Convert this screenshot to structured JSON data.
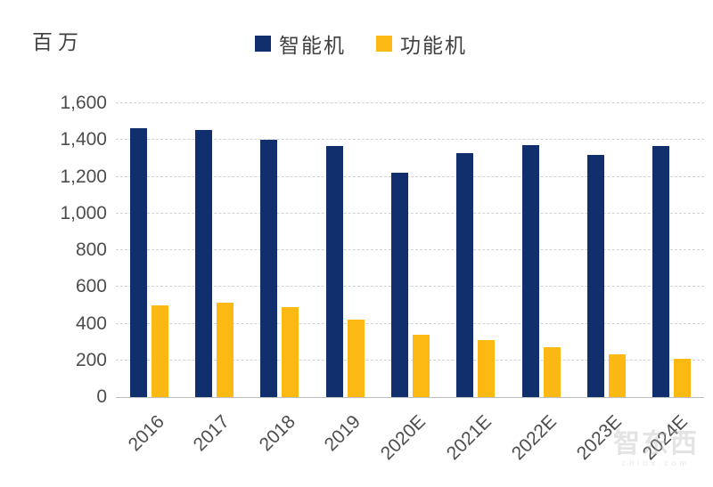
{
  "unit_label": "百万",
  "watermark": {
    "logo_text": "智东西",
    "subtext": "zhidx.com"
  },
  "colors": {
    "smartphone_blue": "#112F6D",
    "featurephone_yellow": "#FDB913",
    "gridline_gray": "#D2D2D2",
    "axis_text_gray": "#4D4D4D"
  },
  "chart_data": {
    "type": "bar",
    "title": "",
    "xlabel": "",
    "ylabel": "百万",
    "categories": [
      "2016",
      "2017",
      "2018",
      "2019",
      "2020E",
      "2021E",
      "2022E",
      "2023E",
      "2024E"
    ],
    "series": [
      {
        "name": "智能机",
        "color": "#112F6D",
        "values": [
          1465,
          1455,
          1400,
          1365,
          1220,
          1330,
          1370,
          1320,
          1365
        ]
      },
      {
        "name": "功能机",
        "color": "#FDB913",
        "values": [
          500,
          515,
          490,
          420,
          340,
          310,
          270,
          235,
          210
        ]
      }
    ],
    "ylim": [
      0,
      1600
    ],
    "ytick_step": 200,
    "ytick_labels": [
      "0",
      "200",
      "400",
      "600",
      "800",
      "1,000",
      "1,200",
      "1,400",
      "1,600"
    ],
    "grid": "dashed-horizontal",
    "legend_position": "top-center",
    "x_label_rotation": -45
  }
}
